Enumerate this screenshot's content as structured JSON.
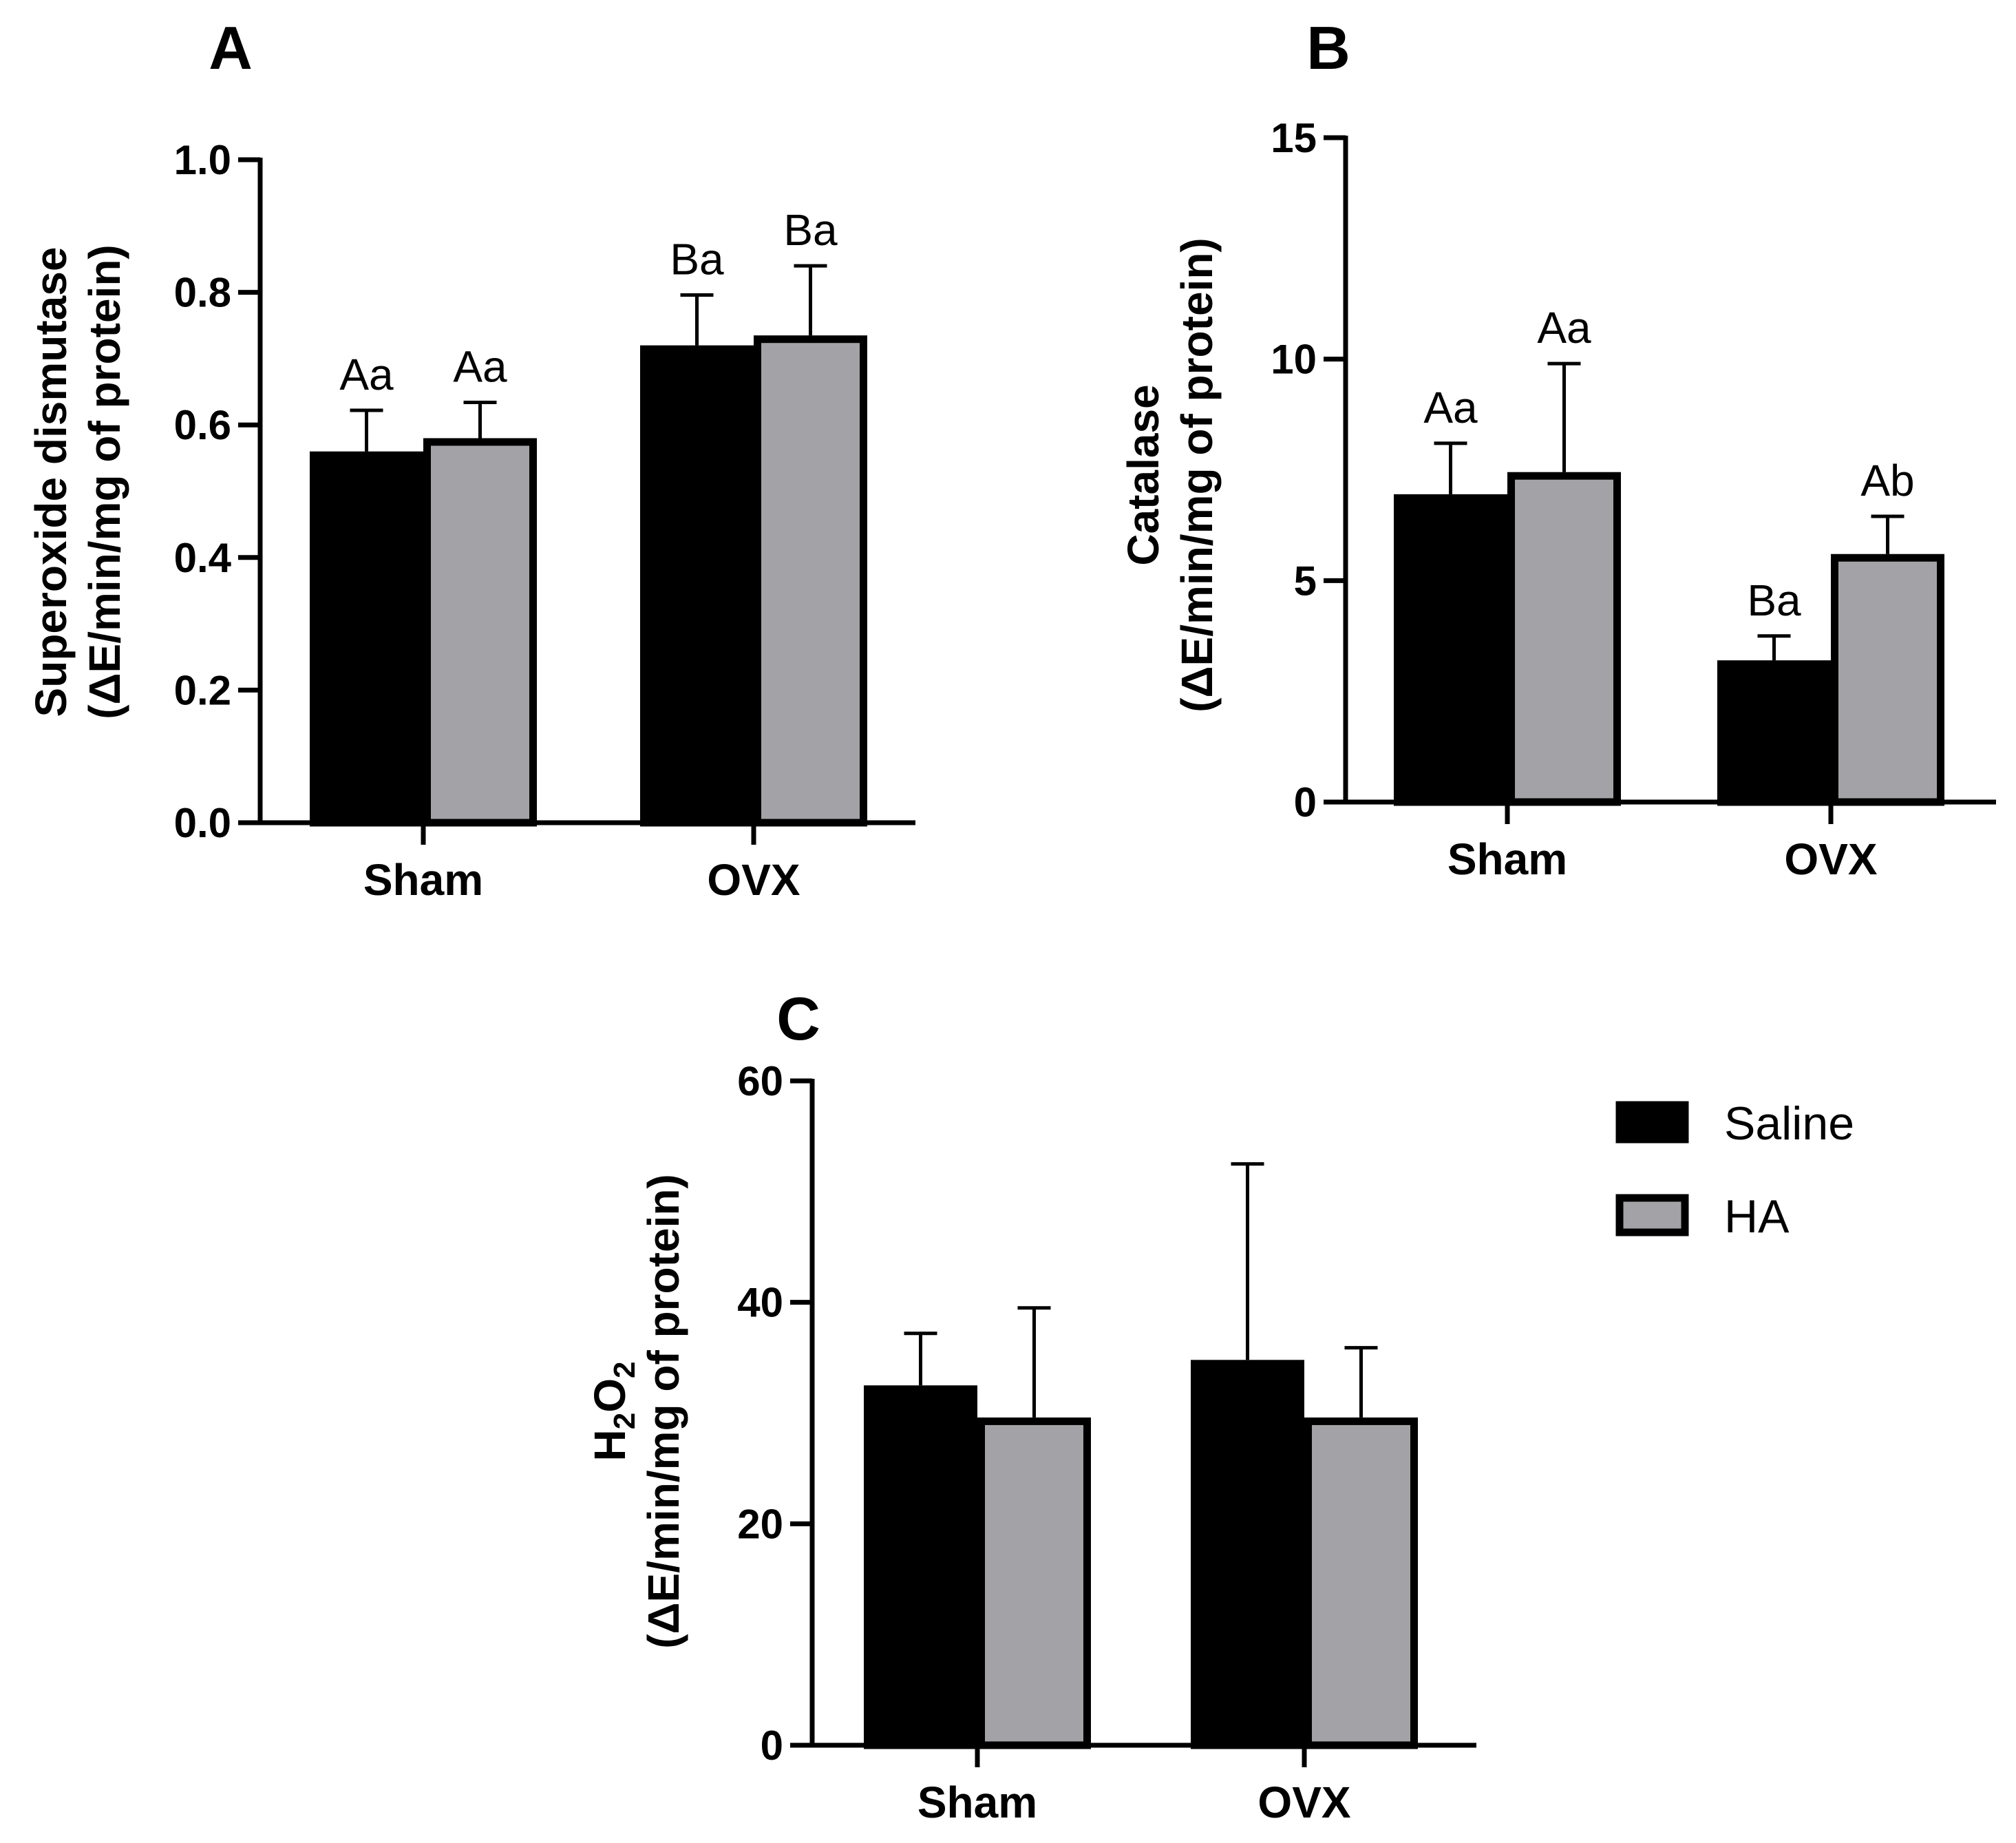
{
  "chart_data": [
    {
      "type": "bar",
      "panel": "A",
      "ylabel_line1": "Superoxide dismutase",
      "ylabel_line2": "(ΔE/min/mg of protein)",
      "categories": [
        "Sham",
        "OVX"
      ],
      "ylim": [
        0,
        1.0
      ],
      "yticks": [
        0,
        0.2,
        0.4,
        0.6,
        0.8,
        1.0
      ],
      "ytick_labels": [
        "0.0",
        "0.2",
        "0.4",
        "0.6",
        "0.8",
        "1.0"
      ],
      "series": [
        {
          "name": "Saline",
          "values": [
            0.56,
            0.72
          ],
          "errors": [
            0.062,
            0.076
          ],
          "labels": [
            "Aa",
            "Ba"
          ]
        },
        {
          "name": "HA",
          "values": [
            0.58,
            0.735
          ],
          "errors": [
            0.054,
            0.105
          ],
          "labels": [
            "Aa",
            "Ba"
          ]
        }
      ]
    },
    {
      "type": "bar",
      "panel": "B",
      "ylabel_line1": "Catalase",
      "ylabel_line2": "(ΔE/min/mg of protein)",
      "categories": [
        "Sham",
        "OVX"
      ],
      "ylim": [
        0,
        15
      ],
      "yticks": [
        0,
        5,
        10,
        15
      ],
      "ytick_labels": [
        "0",
        "5",
        "10",
        "15"
      ],
      "series": [
        {
          "name": "Saline",
          "values": [
            6.95,
            3.2
          ],
          "errors": [
            1.15,
            0.55
          ],
          "labels": [
            "Aa",
            "Ba"
          ]
        },
        {
          "name": "HA",
          "values": [
            7.45,
            5.6
          ],
          "errors": [
            2.45,
            0.85
          ],
          "labels": [
            "Aa",
            "Ab"
          ]
        }
      ]
    },
    {
      "type": "bar",
      "panel": "C",
      "ylabel_line1_main": "H",
      "ylabel_line1_sub1": "2",
      "ylabel_line1_mid": "O",
      "ylabel_line1_sub2": "2",
      "ylabel_line2": "(ΔE/min/mg of protein)",
      "categories": [
        "Sham",
        "OVX"
      ],
      "ylim": [
        0,
        60
      ],
      "yticks": [
        0,
        20,
        40,
        60
      ],
      "ytick_labels": [
        "0",
        "20",
        "40",
        "60"
      ],
      "series": [
        {
          "name": "Saline",
          "values": [
            32.5,
            34.8
          ],
          "errors": [
            4.7,
            17.7
          ],
          "labels": [
            "",
            ""
          ]
        },
        {
          "name": "HA",
          "values": [
            29.6,
            29.6
          ],
          "errors": [
            9.9,
            6.3
          ],
          "labels": [
            "",
            ""
          ]
        }
      ]
    }
  ],
  "legend": {
    "items": [
      {
        "label": "Saline",
        "color": "#000000"
      },
      {
        "label": "HA",
        "color": "#a3a3a7"
      }
    ]
  },
  "colors": {
    "saline": "#000000",
    "ha": "#a3a3a7",
    "axis": "#000000"
  }
}
